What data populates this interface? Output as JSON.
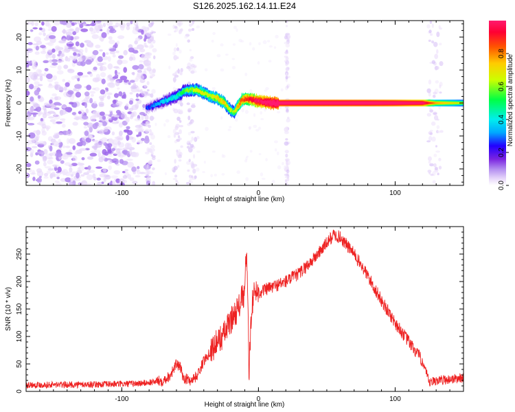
{
  "title": "S126.2025.162.14.11.E24",
  "chart_data": [
    {
      "type": "heatmap",
      "xlabel": "Height of straight line (km)",
      "ylabel": "Frequency (Hz)",
      "xlim": [
        -170,
        150
      ],
      "ylim": [
        -25,
        25
      ],
      "xticks": [
        -100,
        0,
        100
      ],
      "yticks": [
        -20,
        -10,
        0,
        10,
        20
      ],
      "grid": false,
      "colorbar": {
        "label": "Normalized spectral amplitude",
        "range": [
          0,
          1
        ],
        "ticks": [
          0.0,
          0.2,
          0.4,
          0.6,
          0.8
        ],
        "colormap": [
          "#ffffff",
          "#e8d8fa",
          "#b28cf0",
          "#7a24e0",
          "#2200ff",
          "#00a8ff",
          "#00eeee",
          "#00ff44",
          "#ccff00",
          "#ffcc00",
          "#ff5500",
          "#ff0033",
          "#ff1a6e"
        ]
      },
      "ridge": {
        "x": [
          -82,
          -78,
          -72,
          -66,
          -60,
          -55,
          -50,
          -45,
          -40,
          -35,
          -30,
          -25,
          -22,
          -18,
          -15,
          -12,
          -8,
          -4,
          0,
          5,
          10,
          20,
          40,
          60,
          80,
          100,
          120,
          125,
          130,
          140,
          150
        ],
        "y": [
          -1.5,
          -1,
          0,
          1,
          2,
          3.5,
          4,
          4,
          3,
          2,
          1.5,
          0,
          -1.5,
          -3,
          -1,
          1,
          1.2,
          1.0,
          0.5,
          0.2,
          0,
          0,
          0,
          0,
          0,
          0,
          0,
          0,
          0,
          0,
          0
        ],
        "amplitude": [
          0.15,
          0.2,
          0.25,
          0.3,
          0.35,
          0.4,
          0.45,
          0.5,
          0.5,
          0.5,
          0.55,
          0.55,
          0.5,
          0.45,
          0.6,
          0.65,
          0.7,
          0.75,
          0.8,
          0.85,
          0.9,
          0.92,
          0.92,
          0.92,
          0.92,
          0.9,
          0.85,
          0.7,
          0.6,
          0.55,
          0.5
        ]
      }
    },
    {
      "type": "line",
      "xlabel": "Height of straight line (km)",
      "ylabel": "SNR (10 * v/v)",
      "xlim": [
        -170,
        150
      ],
      "ylim": [
        0,
        300
      ],
      "xticks": [
        -100,
        0,
        100
      ],
      "yticks": [
        0,
        50,
        100,
        150,
        200,
        250
      ],
      "grid": false,
      "series": [
        {
          "color": "#ee2222",
          "x": [
            -170,
            -140,
            -110,
            -90,
            -80,
            -70,
            -65,
            -60,
            -57,
            -55,
            -50,
            -45,
            -40,
            -35,
            -30,
            -25,
            -20,
            -18,
            -15,
            -12,
            -10,
            -9,
            -8,
            -7,
            -5,
            -2,
            0,
            5,
            10,
            20,
            30,
            40,
            50,
            55,
            60,
            70,
            80,
            90,
            100,
            110,
            120,
            125,
            130,
            140,
            150
          ],
          "y": [
            12,
            12,
            13,
            14,
            16,
            20,
            28,
            50,
            42,
            25,
            20,
            28,
            55,
            75,
            90,
            105,
            130,
            140,
            150,
            170,
            175,
            260,
            190,
            30,
            160,
            185,
            180,
            185,
            190,
            200,
            215,
            240,
            270,
            285,
            280,
            250,
            210,
            165,
            125,
            90,
            55,
            15,
            20,
            22,
            25
          ]
        }
      ]
    }
  ]
}
